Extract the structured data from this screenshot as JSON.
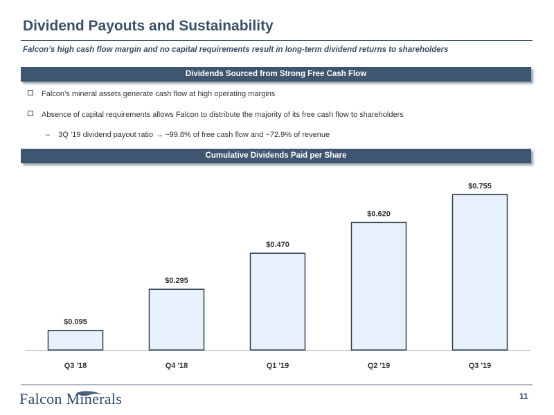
{
  "header": {
    "title": "Dividend Payouts and Sustainability",
    "subtitle": "Falcon’s high cash flow margin and no capital requirements result in long-term dividend returns to shareholders"
  },
  "section1": {
    "heading": "Dividends Sourced from Strong Free Cash Flow",
    "bullets": [
      "Falcon’s mineral assets generate cash flow at high operating margins",
      "Absence of capital requirements allows Falcon to distribute the majority of its free cash flow to shareholders"
    ],
    "sub_bullet_dash": "–",
    "sub_bullet": "3Q ’19 dividend payout ratio → ~99.8% of free cash flow and ~72.9% of revenue"
  },
  "section2": {
    "heading": "Cumulative Dividends Paid per Share"
  },
  "chart_data": {
    "type": "bar",
    "categories": [
      "Q3 '18",
      "Q4 '18",
      "Q1 '19",
      "Q2 '19",
      "Q3 '19"
    ],
    "values": [
      0.095,
      0.295,
      0.47,
      0.62,
      0.755
    ],
    "data_labels": [
      "$0.095",
      "$0.295",
      "$0.470",
      "$0.620",
      "$0.755"
    ],
    "title": "",
    "xlabel": "",
    "ylabel": "",
    "ylim": [
      0,
      0.82
    ],
    "grid": false,
    "bar_fill": "#e8f1fb",
    "bar_stroke": "#2d3e50"
  },
  "footer": {
    "logo_text": "Falcon Minerals",
    "page_number": "11"
  },
  "colors": {
    "primary": "#3b4f66",
    "section_bar": "#3f5670"
  }
}
